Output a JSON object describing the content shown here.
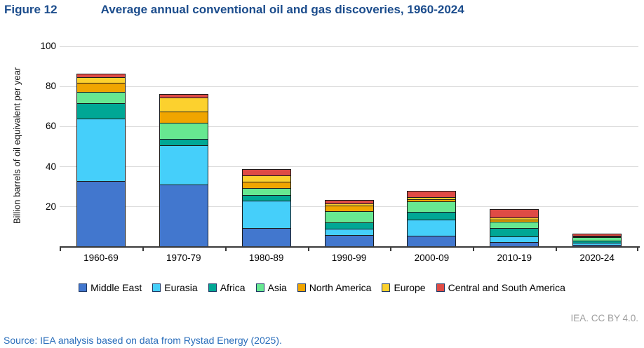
{
  "header": {
    "figure_label": "Figure 12",
    "title": "Average annual conventional oil and gas discoveries, 1960-2024"
  },
  "chart_data": {
    "type": "bar",
    "stacked": true,
    "title": "Average annual conventional oil and gas discoveries, 1960-2024",
    "xlabel": "",
    "ylabel": "Billion barrels of oil equivalent per year",
    "ylim": [
      0,
      100
    ],
    "yticks": [
      20,
      40,
      60,
      80,
      100
    ],
    "grid": "horizontal",
    "legend_position": "bottom",
    "categories": [
      "1960-69",
      "1970-79",
      "1980-89",
      "1990-99",
      "2000-09",
      "2010-19",
      "2020-24"
    ],
    "series": [
      {
        "name": "Middle East",
        "color": "#4277CE",
        "values": [
          33,
          31,
          9.5,
          6,
          5.5,
          2.5,
          1.0
        ]
      },
      {
        "name": "Eurasia",
        "color": "#45CFFA",
        "values": [
          31.5,
          20,
          14,
          3.5,
          8.5,
          3,
          1.3
        ]
      },
      {
        "name": "Africa",
        "color": "#00A795",
        "values": [
          8,
          3.5,
          3,
          3.5,
          4.3,
          4.5,
          1.5
        ]
      },
      {
        "name": "Asia",
        "color": "#67E891",
        "values": [
          6,
          8.5,
          4,
          6,
          5.5,
          3.5,
          2.0
        ]
      },
      {
        "name": "North America",
        "color": "#F0A500",
        "values": [
          5,
          6,
          3.5,
          3,
          1.5,
          1.5,
          0.8
        ]
      },
      {
        "name": "Europe",
        "color": "#FCD12E",
        "values": [
          3,
          7.5,
          3.5,
          1.5,
          1.5,
          1.5,
          0.6
        ]
      },
      {
        "name": "Central and South America",
        "color": "#DF4B45",
        "values": [
          2.2,
          2,
          3.5,
          2,
          3.5,
          4.5,
          1.5
        ]
      }
    ],
    "approx_totals": [
      88.7,
      78.5,
      41,
      25.5,
      30.3,
      21,
      8.7
    ]
  },
  "footer": {
    "license": "IEA. CC BY 4.0.",
    "source": "Source: IEA analysis based on data from Rystad Energy (2025)."
  }
}
